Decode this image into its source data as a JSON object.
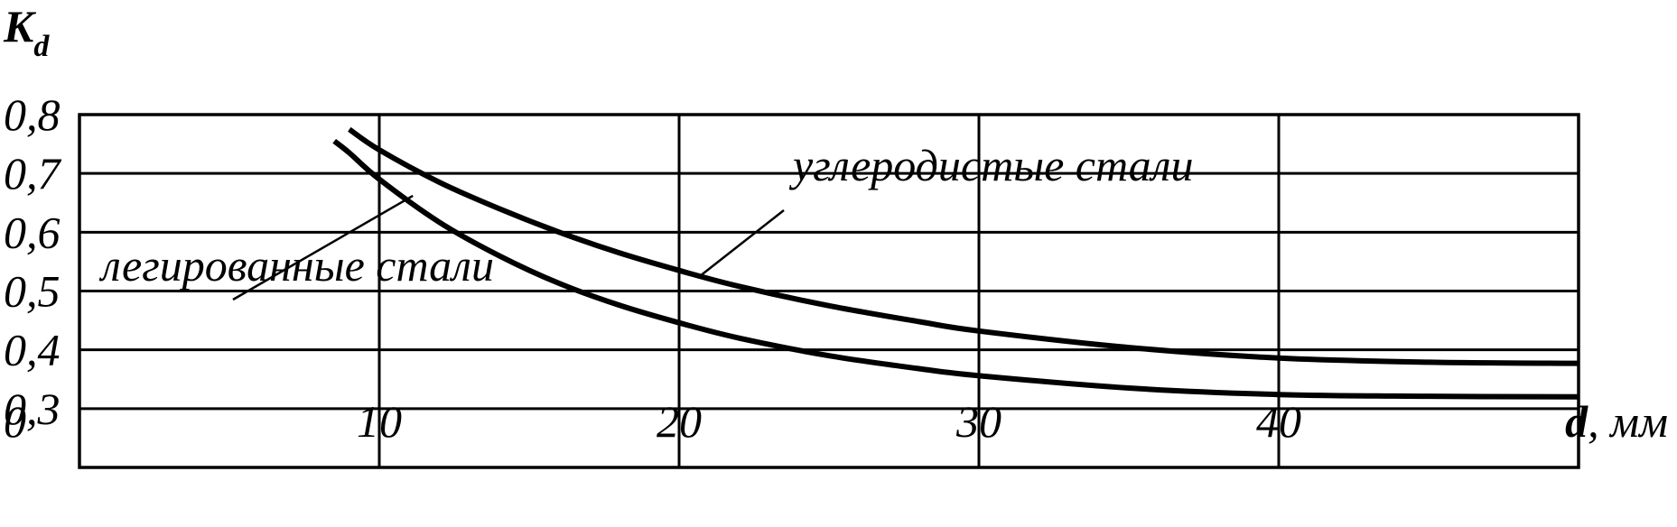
{
  "chart_data": {
    "type": "line",
    "ylabel": "K",
    "ylabel_sub": "d",
    "xlabel": "d",
    "xlabel_unit": ", мм",
    "xlim": [
      0,
      50
    ],
    "ylim": [
      0.2,
      0.8
    ],
    "x_ticks": [
      {
        "value": 10,
        "label": "10"
      },
      {
        "value": 20,
        "label": "20"
      },
      {
        "value": 30,
        "label": "30"
      },
      {
        "value": 40,
        "label": "40"
      }
    ],
    "y_ticks": [
      {
        "value": 0.8,
        "label": "0,8"
      },
      {
        "value": 0.7,
        "label": "0,7"
      },
      {
        "value": 0.6,
        "label": "0,6"
      },
      {
        "value": 0.5,
        "label": "0,5"
      },
      {
        "value": 0.4,
        "label": "0,4"
      },
      {
        "value": 0.3,
        "label": "0,3"
      }
    ],
    "origin_label": "0",
    "grid": true,
    "series": [
      {
        "name": "углеродистые стали",
        "x": [
          9,
          10,
          12,
          14,
          16,
          18,
          20,
          22,
          25,
          28,
          30,
          35,
          40,
          45,
          50
        ],
        "y": [
          0.775,
          0.74,
          0.685,
          0.64,
          0.6,
          0.565,
          0.535,
          0.508,
          0.475,
          0.448,
          0.432,
          0.404,
          0.386,
          0.379,
          0.377
        ],
        "label_anchor": {
          "x": 21,
          "y": 0.525
        }
      },
      {
        "name": "легированные стали",
        "x": [
          8.5,
          9,
          10,
          12,
          14,
          16,
          18,
          20,
          22,
          25,
          28,
          30,
          35,
          40,
          45,
          50
        ],
        "y": [
          0.755,
          0.735,
          0.69,
          0.617,
          0.56,
          0.513,
          0.476,
          0.446,
          0.42,
          0.39,
          0.368,
          0.356,
          0.335,
          0.324,
          0.321,
          0.32
        ],
        "label_anchor": {
          "x": 11,
          "y": 0.665
        }
      }
    ]
  }
}
